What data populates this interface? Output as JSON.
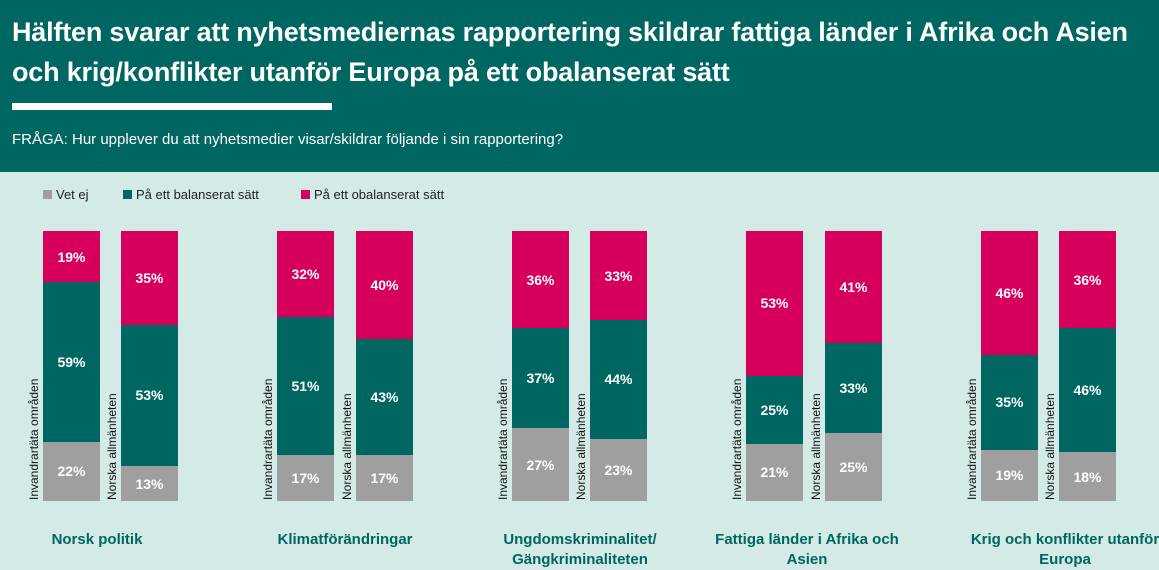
{
  "header": {
    "title": "Hälften svarar att nyhetsmediernas rapportering skildrar fattiga länder i Afrika och Asien och krig/konflikter utanför Europa på ett obalanserat sätt",
    "question": "FRÅGA: Hur upplever du att nyhetsmedier visar/skildrar följande i sin rapportering?"
  },
  "chart_data": {
    "type": "bar",
    "stacked": true,
    "title": "Hälften svarar att nyhetsmediernas rapportering skildrar fattiga länder i Afrika och Asien och krig/konflikter utanför Europa på ett obalanserat sätt",
    "legend_position": "top-left",
    "legend": [
      {
        "name": "Vet ej",
        "color": "#a09fa0"
      },
      {
        "name": "På ett balanserat sätt",
        "color": "#006661"
      },
      {
        "name": "På ett obalanserat sätt",
        "color": "#d6005c"
      }
    ],
    "groups": [
      {
        "category": "Norsk politik",
        "bars": [
          {
            "label": "Invandrartäta områden",
            "values": [
              22,
              59,
              19
            ]
          },
          {
            "label": "Norska allmänheten",
            "values": [
              13,
              53,
              35
            ]
          }
        ]
      },
      {
        "category": "Klimatförändringar",
        "bars": [
          {
            "label": "Invandrartäta områden",
            "values": [
              17,
              51,
              32
            ]
          },
          {
            "label": "Norska allmänheten",
            "values": [
              17,
              43,
              40
            ]
          }
        ]
      },
      {
        "category": "Ungdomskriminalitet/ Gängkriminaliteten",
        "bars": [
          {
            "label": "Invandrartäta områden",
            "values": [
              27,
              37,
              36
            ]
          },
          {
            "label": "Norska allmänheten",
            "values": [
              23,
              44,
              33
            ]
          }
        ]
      },
      {
        "category": "Fattiga länder i Afrika och Asien",
        "bars": [
          {
            "label": "Invandrartäta områden",
            "values": [
              21,
              25,
              53
            ]
          },
          {
            "label": "Norska allmänheten",
            "values": [
              25,
              33,
              41
            ]
          }
        ]
      },
      {
        "category": "Krig och konflikter utanför Europa",
        "bars": [
          {
            "label": "Invandrartäta områden",
            "values": [
              19,
              35,
              46
            ]
          },
          {
            "label": "Norska allmänheten",
            "values": [
              18,
              46,
              36
            ]
          }
        ]
      }
    ],
    "unit": "%"
  }
}
